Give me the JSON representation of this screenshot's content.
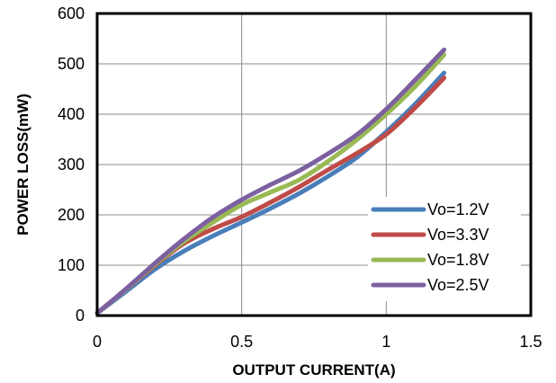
{
  "chart_data": {
    "type": "line",
    "title": "",
    "xlabel": "OUTPUT  CURRENT(A)",
    "ylabel": "POWER LOSS(mW)",
    "xlim": [
      0,
      1.5
    ],
    "ylim": [
      0,
      600
    ],
    "xticks": [
      0,
      0.5,
      1,
      1.5
    ],
    "xtick_labels": [
      "0",
      "0.5",
      "1",
      "1.5"
    ],
    "yticks": [
      0,
      100,
      200,
      300,
      400,
      500,
      600
    ],
    "ytick_labels": [
      "0",
      "100",
      "200",
      "300",
      "400",
      "500",
      "600"
    ],
    "grid": "on",
    "legend_position": "bottom-right",
    "series": [
      {
        "name": "Vo=1.2V",
        "color": "#4a7ebb",
        "x": [
          0,
          0.1,
          0.2,
          0.3,
          0.4,
          0.5,
          0.6,
          0.7,
          0.8,
          0.9,
          1.0,
          1.1,
          1.2
        ],
        "y": [
          5,
          48,
          92,
          128,
          158,
          185,
          213,
          243,
          277,
          315,
          365,
          420,
          482
        ]
      },
      {
        "name": "Vo=3.3V",
        "color": "#be4b48",
        "x": [
          0,
          0.1,
          0.2,
          0.3,
          0.4,
          0.5,
          0.6,
          0.7,
          0.8,
          0.9,
          1.0,
          1.1,
          1.2
        ],
        "y": [
          5,
          52,
          100,
          143,
          172,
          196,
          225,
          256,
          290,
          323,
          360,
          413,
          472
        ]
      },
      {
        "name": "Vo=1.8V",
        "color": "#98b954",
        "x": [
          0,
          0.1,
          0.2,
          0.3,
          0.4,
          0.5,
          0.6,
          0.7,
          0.8,
          0.9,
          1.0,
          1.1,
          1.2
        ],
        "y": [
          5,
          52,
          102,
          147,
          185,
          220,
          245,
          270,
          307,
          350,
          400,
          455,
          518
        ]
      },
      {
        "name": "Vo=2.5V",
        "color": "#7d60a0",
        "x": [
          0,
          0.1,
          0.2,
          0.3,
          0.4,
          0.5,
          0.6,
          0.7,
          0.8,
          0.9,
          1.0,
          1.1,
          1.2
        ],
        "y": [
          5,
          53,
          104,
          152,
          195,
          230,
          260,
          288,
          322,
          360,
          410,
          468,
          528
        ]
      }
    ]
  }
}
